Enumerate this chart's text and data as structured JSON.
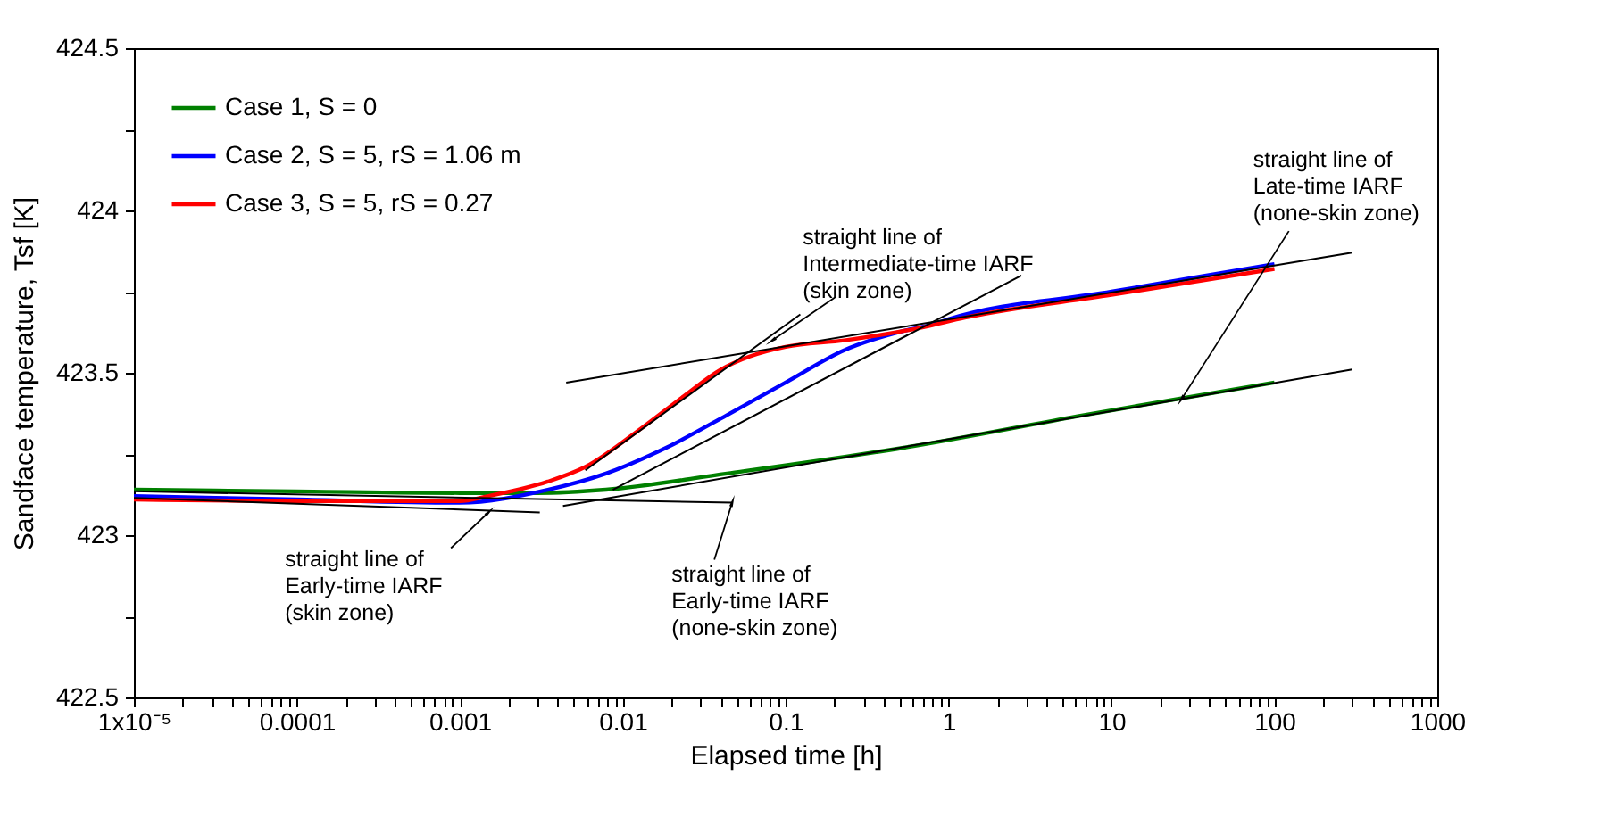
{
  "chart_data": {
    "type": "line",
    "xlabel": "Elapsed time [h]",
    "ylabel": "Sandface temperature, Tsf [K]",
    "log": "x",
    "xlim": [
      1e-05,
      1000
    ],
    "ylim": [
      422.5,
      424.5
    ],
    "xticks": [
      {
        "value": 1e-05,
        "label": "1x10⁻⁵"
      },
      0.0001,
      0.001,
      0.01,
      0.1,
      1,
      10,
      100,
      1000,
      {
        "value": 2e-05,
        "label": null
      },
      {
        "value": 3e-05,
        "label": null
      },
      {
        "value": 4e-05,
        "label": null
      },
      {
        "value": 5e-05,
        "label": null
      },
      {
        "value": 6e-05,
        "label": null
      },
      {
        "value": 7e-05,
        "label": null
      },
      {
        "value": 8e-05,
        "label": null
      },
      {
        "value": 9e-05,
        "label": null
      },
      {
        "value": 0.0002,
        "label": null
      },
      {
        "value": 0.0003,
        "label": null
      },
      {
        "value": 0.0004,
        "label": null
      },
      {
        "value": 0.0005,
        "label": null
      },
      {
        "value": 0.0006,
        "label": null
      },
      {
        "value": 0.0007,
        "label": null
      },
      {
        "value": 0.0008,
        "label": null
      },
      {
        "value": 0.0009,
        "label": null
      },
      {
        "value": 0.002,
        "label": null
      },
      {
        "value": 0.003,
        "label": null
      },
      {
        "value": 0.004,
        "label": null
      },
      {
        "value": 0.005,
        "label": null
      },
      {
        "value": 0.006,
        "label": null
      },
      {
        "value": 0.007,
        "label": null
      },
      {
        "value": 0.008,
        "label": null
      },
      {
        "value": 0.009,
        "label": null
      },
      {
        "value": 0.02,
        "label": null
      },
      {
        "value": 0.03,
        "label": null
      },
      {
        "value": 0.04,
        "label": null
      },
      {
        "value": 0.05,
        "label": null
      },
      {
        "value": 0.06,
        "label": null
      },
      {
        "value": 0.07,
        "label": null
      },
      {
        "value": 0.08,
        "label": null
      },
      {
        "value": 0.09,
        "label": null
      },
      {
        "value": 0.2,
        "label": null
      },
      {
        "value": 0.3,
        "label": null
      },
      {
        "value": 0.4,
        "label": null
      },
      {
        "value": 0.5,
        "label": null
      },
      {
        "value": 0.6,
        "label": null
      },
      {
        "value": 0.7,
        "label": null
      },
      {
        "value": 0.8,
        "label": null
      },
      {
        "value": 0.9,
        "label": null
      },
      {
        "value": 2,
        "label": null
      },
      {
        "value": 3,
        "label": null
      },
      {
        "value": 4,
        "label": null
      },
      {
        "value": 5,
        "label": null
      },
      {
        "value": 6,
        "label": null
      },
      {
        "value": 7,
        "label": null
      },
      {
        "value": 8,
        "label": null
      },
      {
        "value": 9,
        "label": null
      },
      {
        "value": 20,
        "label": null
      },
      {
        "value": 30,
        "label": null
      },
      {
        "value": 40,
        "label": null
      },
      {
        "value": 50,
        "label": null
      },
      {
        "value": 60,
        "label": null
      },
      {
        "value": 70,
        "label": null
      },
      {
        "value": 80,
        "label": null
      },
      {
        "value": 90,
        "label": null
      },
      {
        "value": 200,
        "label": null
      },
      {
        "value": 300,
        "label": null
      },
      {
        "value": 400,
        "label": null
      },
      {
        "value": 500,
        "label": null
      },
      {
        "value": 600,
        "label": null
      },
      {
        "value": 700,
        "label": null
      },
      {
        "value": 800,
        "label": null
      },
      {
        "value": 900,
        "label": null
      }
    ],
    "yticks": [
      422.5,
      423,
      423.5,
      424,
      424.5,
      {
        "value": 422.75,
        "label": null
      },
      {
        "value": 423.25,
        "label": null
      },
      {
        "value": 423.75,
        "label": null
      },
      {
        "value": 424.25,
        "label": null
      }
    ],
    "grid": false,
    "legend": "top left",
    "series": [
      {
        "name": "Case 1, S = 0",
        "color": "#008000",
        "x": [
          1e-05,
          0.0001,
          0.001,
          0.003,
          0.0079,
          0.0437,
          0.54,
          6.8,
          100
        ],
        "values": [
          423.14,
          423.135,
          423.13,
          423.13,
          423.14,
          423.19,
          423.27,
          423.37,
          423.47
        ]
      },
      {
        "name": "Case 2, S = 5, rS = 1.06 m",
        "color": "#0000ff",
        "x": [
          1e-05,
          0.0001,
          0.001,
          0.00347,
          0.0079,
          0.0186,
          0.0437,
          0.1,
          0.23,
          0.54,
          0.81,
          1,
          10,
          100
        ],
        "values": [
          423.12,
          423.11,
          423.1,
          423.14,
          423.19,
          423.27,
          423.37,
          423.47,
          423.57,
          423.63,
          423.65,
          423.665,
          423.75,
          423.835
        ]
      },
      {
        "name": "Case 3, S = 5, rS = 0.27",
        "color": "#ff0000",
        "x": [
          1e-05,
          0.0001,
          0.001,
          0.00148,
          0.00347,
          0.00589,
          0.0123,
          0.024,
          0.04,
          0.06,
          0.1,
          0.23,
          0.69,
          1.26,
          10,
          100
        ],
        "values": [
          423.11,
          423.105,
          423.105,
          423.12,
          423.165,
          423.21,
          423.32,
          423.43,
          423.51,
          423.55,
          423.58,
          423.6,
          423.64,
          423.67,
          423.74,
          423.82
        ]
      },
      {
        "color": "#000000",
        "x": [
          0.0045,
          300
        ],
        "values": [
          423.47,
          423.87
        ]
      },
      {
        "color": "#000000",
        "x": [
          0.0043,
          300
        ],
        "values": [
          423.09,
          423.51
        ]
      },
      {
        "color": "#000000",
        "x": [
          0.0059,
          0.123
        ],
        "values": [
          423.2,
          423.68
        ]
      },
      {
        "color": "#000000",
        "x": [
          0.0087,
          2.8
        ],
        "values": [
          423.14,
          423.8
        ]
      },
      {
        "color": "#000000",
        "x": [
          1e-05,
          0.0031
        ],
        "values": [
          423.115,
          423.07
        ]
      },
      {
        "color": "#000000",
        "x": [
          1e-05,
          0.047
        ],
        "values": [
          423.135,
          423.1
        ]
      }
    ],
    "annotations": [
      {
        "text": "straight line of\nIntermediate-time IARF\n(skin zone)",
        "x": 0.083,
        "y": 423.6
      },
      {
        "text": "straight line of\nLate-time IARF\n(none-skin zone)",
        "x": 27,
        "y": 423.42
      },
      {
        "text": "straight line of\nEarly-time IARF\n(skin zone)",
        "x": 0.0015,
        "y": 423.07
      },
      {
        "text": "straight line of\nEarly-time IARF\n(none-skin zone)",
        "x": 0.047,
        "y": 423.1
      }
    ]
  }
}
